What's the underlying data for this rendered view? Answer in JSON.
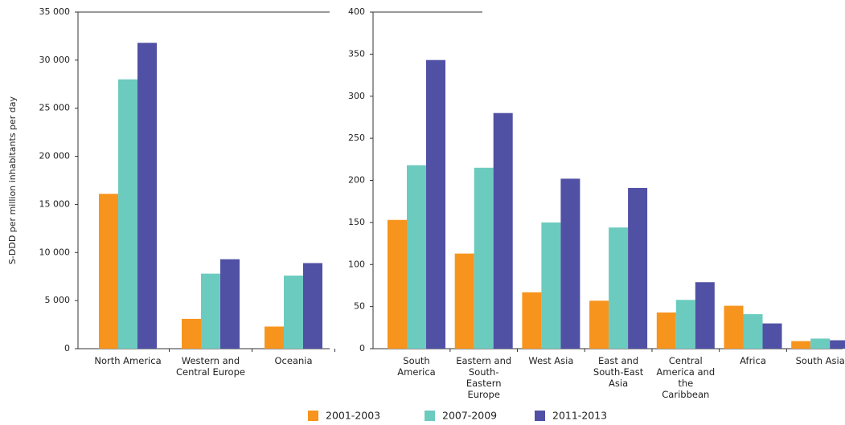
{
  "chart_data": [
    {
      "type": "bar",
      "ylabel": "S-DDD per million inhabitants per day",
      "categories": [
        "North America",
        "Western and Central Europe",
        "Oceania"
      ],
      "series": [
        {
          "name": "2001-2003",
          "color": "#f7941d",
          "values": [
            16100,
            3100,
            2300
          ]
        },
        {
          "name": "2007-2009",
          "color": "#6ccbbf",
          "values": [
            28000,
            7800,
            7600
          ]
        },
        {
          "name": "2011-2013",
          "color": "#5050a5",
          "values": [
            31800,
            9300,
            8900
          ]
        }
      ],
      "ylim": [
        0,
        35000
      ],
      "yticks": [
        0,
        {
          "value": 5000,
          "label": "5 000"
        },
        {
          "value": 10000,
          "label": "10 000"
        },
        {
          "value": 15000,
          "label": "15 000"
        },
        {
          "value": 20000,
          "label": "20 000"
        },
        {
          "value": 25000,
          "label": "25 000"
        },
        {
          "value": 30000,
          "label": "30 000"
        },
        {
          "value": 35000,
          "label": "35 000"
        }
      ]
    },
    {
      "type": "bar",
      "categories": [
        "South America",
        "Eastern and South-Eastern Europe",
        "West Asia",
        "East and South-East Asia",
        "Central America and the Caribbean",
        "Africa",
        "South Asia"
      ],
      "series": [
        {
          "color": "#f7941d",
          "values": [
            153,
            113,
            67,
            57,
            43,
            51,
            9
          ]
        },
        {
          "color": "#6ccbbf",
          "values": [
            218,
            215,
            150,
            144,
            58,
            41,
            12
          ]
        },
        {
          "color": "#5050a5",
          "values": [
            343,
            280,
            202,
            191,
            79,
            30,
            10
          ]
        }
      ],
      "ylim": [
        0,
        400
      ],
      "yticks": [
        0,
        50,
        100,
        150,
        200,
        250,
        300,
        350,
        400
      ]
    }
  ]
}
